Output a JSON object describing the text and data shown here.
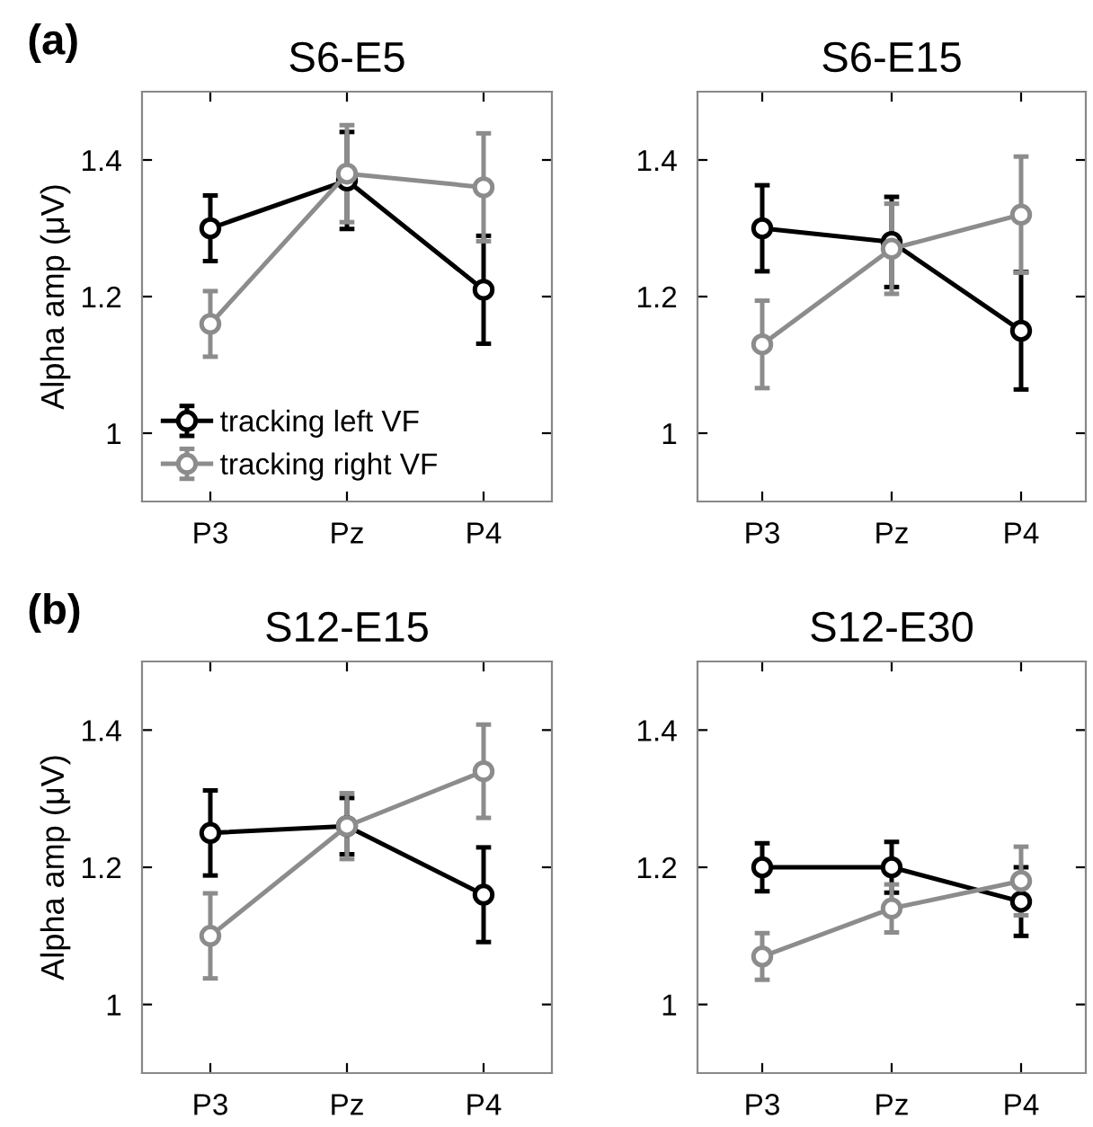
{
  "chart_data": [
    {
      "type": "line",
      "title": "S6-E5",
      "ylabel": "Alpha amp (μV)",
      "annotations": [
        "(a)"
      ],
      "categories": [
        "P3",
        "Pz",
        "P4"
      ],
      "ylim": [
        0.9,
        1.5
      ],
      "yticks": [
        1,
        1.2,
        1.4
      ],
      "marker": "circle",
      "legend": "bottom left",
      "series": [
        {
          "name": "tracking left VF",
          "color": "#000000",
          "values": [
            1.3,
            1.37,
            1.21
          ],
          "errors": [
            0.048,
            0.071,
            0.079
          ]
        },
        {
          "name": "tracking right VF",
          "color": "#8c8c8c",
          "values": [
            1.16,
            1.38,
            1.36
          ],
          "errors": [
            0.048,
            0.071,
            0.079
          ]
        }
      ]
    },
    {
      "type": "line",
      "title": "S6-E15",
      "categories": [
        "P3",
        "Pz",
        "P4"
      ],
      "ylim": [
        0.9,
        1.5
      ],
      "yticks": [
        1,
        1.2,
        1.4
      ],
      "marker": "circle",
      "series": [
        {
          "color": "#000000",
          "values": [
            1.3,
            1.28,
            1.15
          ],
          "errors": [
            0.063,
            0.066,
            0.086
          ]
        },
        {
          "color": "#8c8c8c",
          "values": [
            1.13,
            1.27,
            1.32
          ],
          "errors": [
            0.064,
            0.066,
            0.085
          ]
        }
      ]
    },
    {
      "type": "line",
      "title": "S12-E15",
      "ylabel": "Alpha amp (μV)",
      "annotations": [
        "(b)"
      ],
      "categories": [
        "P3",
        "Pz",
        "P4"
      ],
      "ylim": [
        0.9,
        1.5
      ],
      "yticks": [
        1,
        1.2,
        1.4
      ],
      "marker": "circle",
      "series": [
        {
          "color": "#000000",
          "values": [
            1.25,
            1.26,
            1.16
          ],
          "errors": [
            0.062,
            0.041,
            0.069
          ]
        },
        {
          "color": "#8c8c8c",
          "values": [
            1.1,
            1.26,
            1.34
          ],
          "errors": [
            0.062,
            0.048,
            0.068
          ]
        }
      ]
    },
    {
      "type": "line",
      "title": "S12-E30",
      "categories": [
        "P3",
        "Pz",
        "P4"
      ],
      "ylim": [
        0.9,
        1.5
      ],
      "yticks": [
        1,
        1.2,
        1.4
      ],
      "marker": "circle",
      "series": [
        {
          "color": "#000000",
          "values": [
            1.2,
            1.2,
            1.15
          ],
          "errors": [
            0.035,
            0.037,
            0.05
          ]
        },
        {
          "color": "#8c8c8c",
          "values": [
            1.07,
            1.14,
            1.18
          ],
          "errors": [
            0.034,
            0.035,
            0.05
          ]
        }
      ]
    }
  ]
}
